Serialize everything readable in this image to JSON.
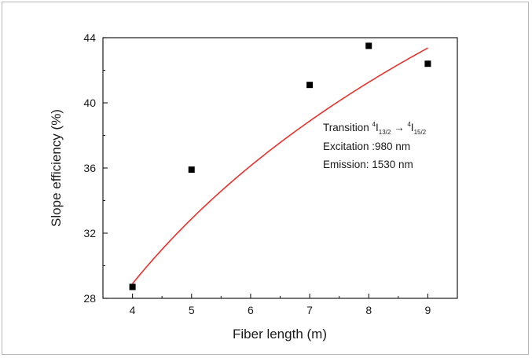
{
  "chart_data": {
    "type": "scatter",
    "xlabel": "Fiber length (m)",
    "ylabel": "Slope efficiency (%)",
    "xlim": [
      3.5,
      9.5
    ],
    "ylim": [
      28,
      44
    ],
    "xticks": [
      4,
      5,
      6,
      7,
      8,
      9
    ],
    "yticks": [
      28,
      32,
      36,
      40,
      44
    ],
    "series": [
      {
        "marker": "square",
        "color": "#000000",
        "x": [
          4,
          5,
          7,
          8,
          9
        ],
        "y": [
          28.7,
          35.9,
          41.1,
          43.5,
          42.4
        ]
      }
    ],
    "fit": {
      "type": "logarithmic",
      "color": "#e8322c",
      "x_range": [
        4,
        9
      ],
      "a": 28.9,
      "b": 17.84,
      "x0": 4
    },
    "annotations": {
      "line1_prefix": "Transition ",
      "sup1": "4",
      "i1": "I",
      "sub1": "13/2",
      "arrow": " → ",
      "sup2": "4",
      "i2": "I",
      "sub2": "15/2",
      "line2": "Excitation :980 nm",
      "line3": "Emission: 1530 nm"
    }
  }
}
